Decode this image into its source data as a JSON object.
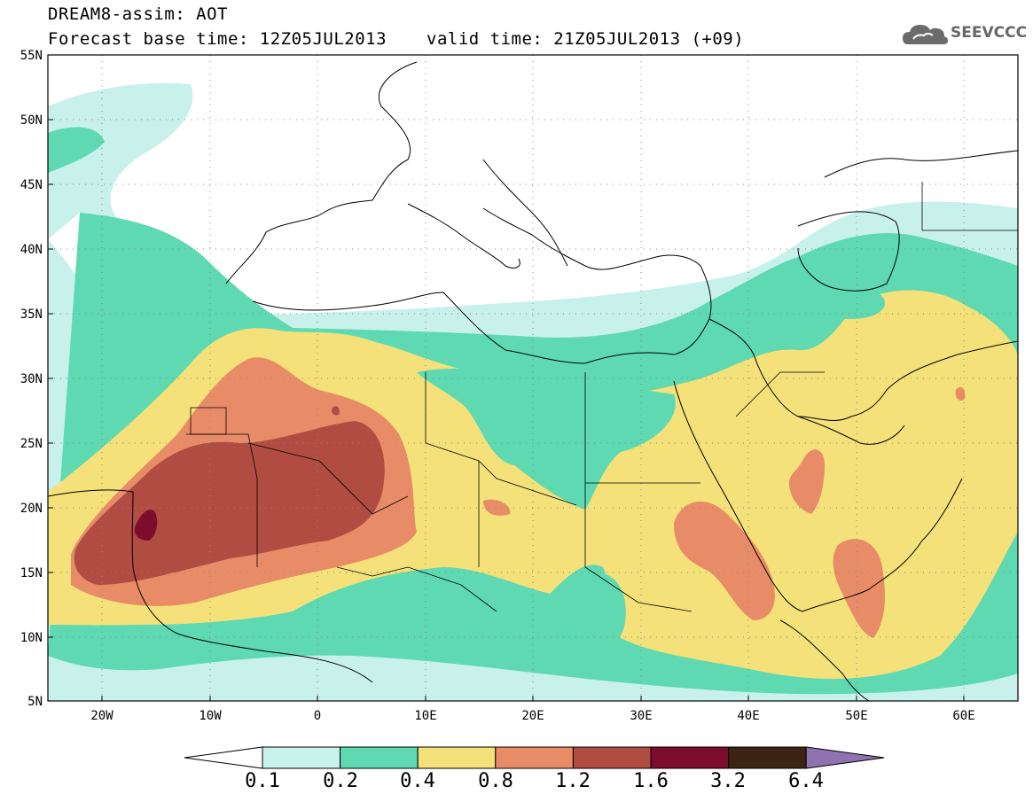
{
  "header": {
    "title": "DREAM8-assim: AOT",
    "base_time": "Forecast base time: 12Z05JUL2013",
    "valid_time": "valid time: 21Z05JUL2013 (+09)"
  },
  "logo": {
    "text": "SEEVCCC",
    "icon": "cloud-icon"
  },
  "map": {
    "variable": "Aerosol optical thickness",
    "lon_range": [
      -25,
      65
    ],
    "lat_range": [
      5,
      55
    ],
    "grid": "dotted",
    "y_ticks": [
      "55N",
      "50N",
      "45N",
      "40N",
      "35N",
      "30N",
      "25N",
      "20N",
      "15N",
      "10N",
      "5N"
    ],
    "x_ticks": [
      "20W",
      "10W",
      "0",
      "10E",
      "20E",
      "30E",
      "40E",
      "50E",
      "60E"
    ]
  },
  "colorbar": {
    "labels": [
      "0.1",
      "0.2",
      "0.4",
      "0.8",
      "1.2",
      "1.6",
      "3.2",
      "6.4"
    ],
    "colors": [
      "#ffffff",
      "#c9f1ec",
      "#5ed9b1",
      "#f4e17a",
      "#e88c68",
      "#b04c42",
      "#7d0d2d",
      "#3b2413",
      "#8f73b0"
    ]
  }
}
